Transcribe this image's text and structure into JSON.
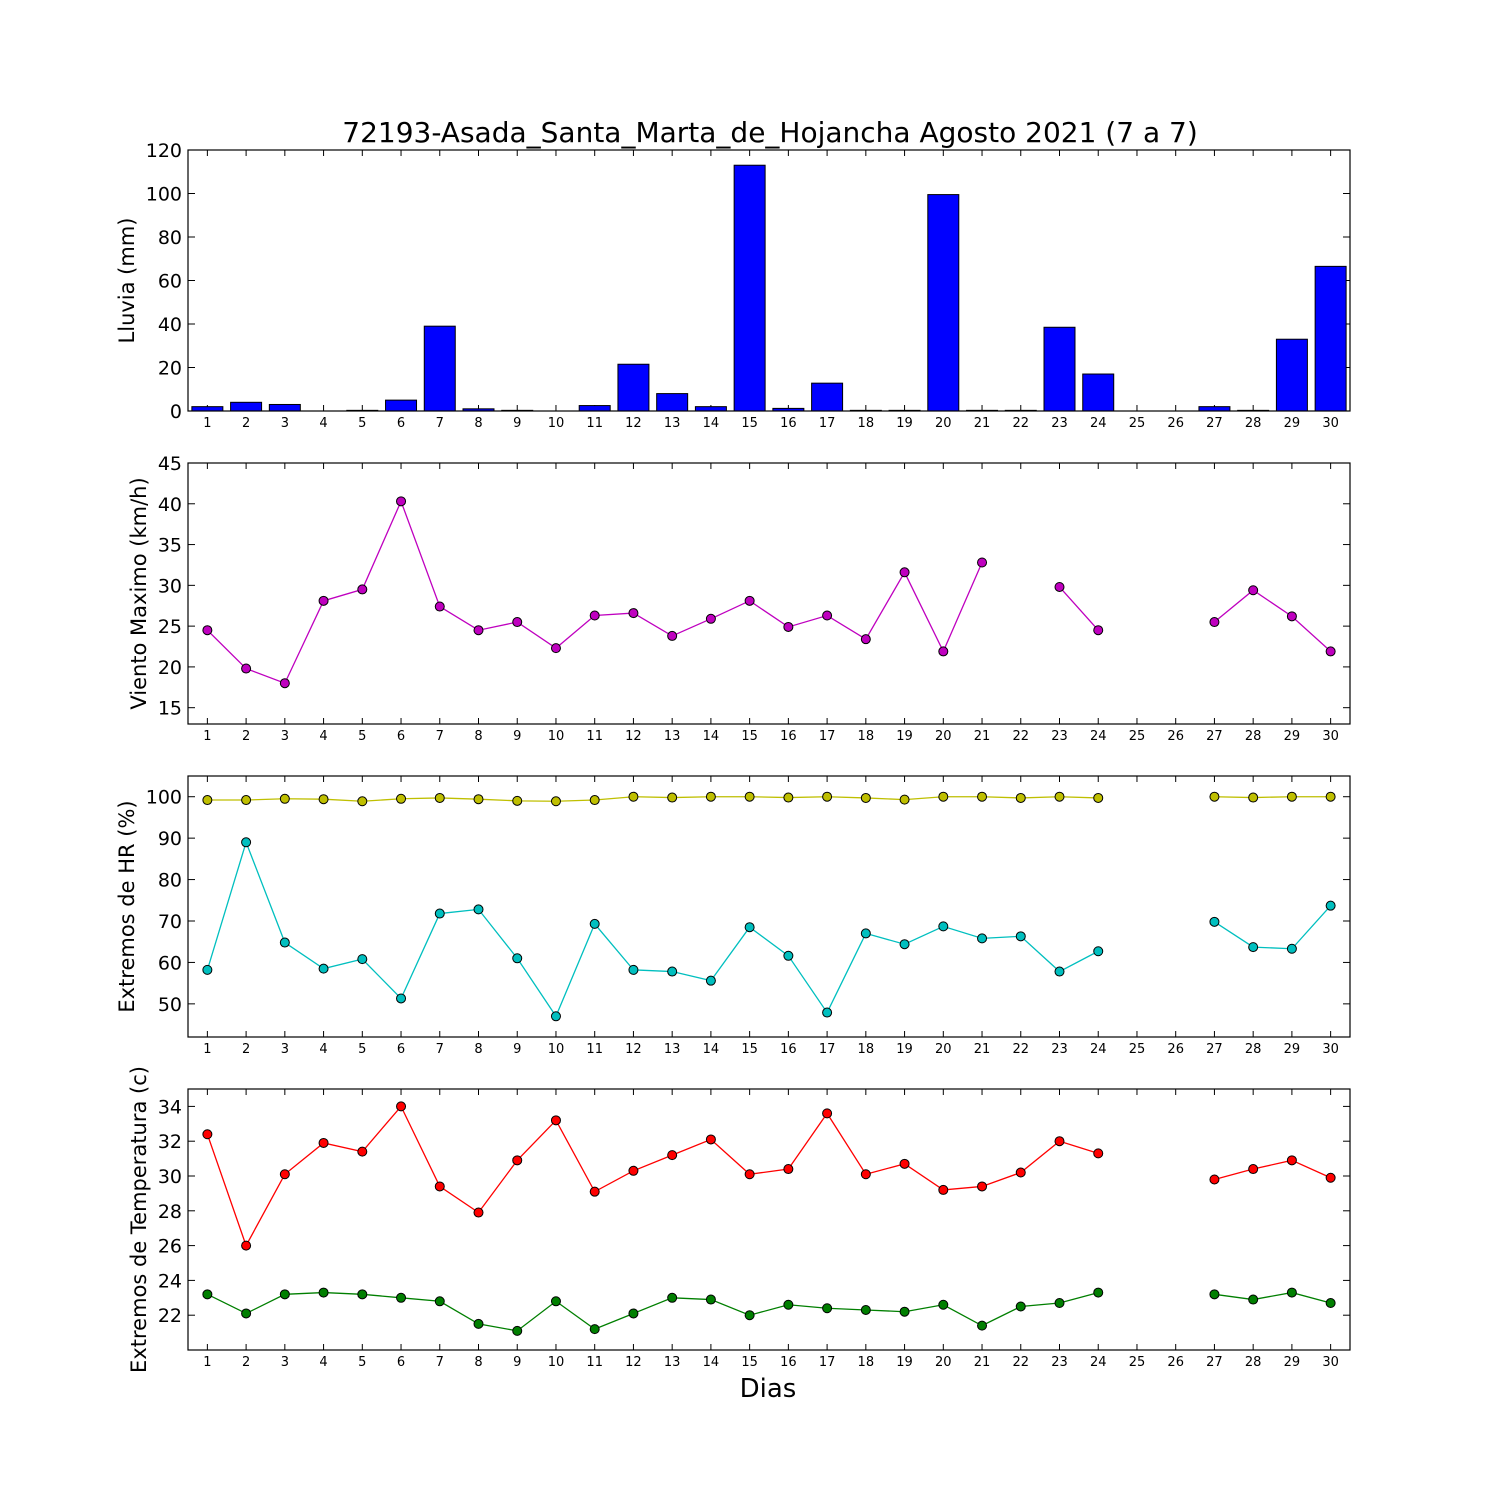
{
  "title": "72193-Asada_Santa_Marta_de_Hojancha Agosto 2021  (7 a 7)",
  "xlabel": "Dias",
  "days": [
    1,
    2,
    3,
    4,
    5,
    6,
    7,
    8,
    9,
    10,
    11,
    12,
    13,
    14,
    15,
    16,
    17,
    18,
    19,
    20,
    21,
    22,
    23,
    24,
    25,
    26,
    27,
    28,
    29,
    30
  ],
  "chart_data": [
    {
      "type": "bar",
      "ylabel": "Lluvia (mm)",
      "ylim": [
        0,
        120
      ],
      "yticks": [
        0,
        20,
        40,
        60,
        80,
        100,
        120
      ],
      "categories": [
        1,
        2,
        3,
        4,
        5,
        6,
        7,
        8,
        9,
        10,
        11,
        12,
        13,
        14,
        15,
        16,
        17,
        18,
        19,
        20,
        21,
        22,
        23,
        24,
        25,
        26,
        27,
        28,
        29,
        30
      ],
      "values": [
        2,
        4,
        3,
        0,
        0.3,
        5,
        39,
        1,
        0.3,
        0,
        2.5,
        21.5,
        8,
        2,
        113,
        1.2,
        12.8,
        0.3,
        0.3,
        99.5,
        0.3,
        0.3,
        38.5,
        17,
        0,
        0,
        2,
        0.3,
        33,
        66.5
      ],
      "color": "#0000ff"
    },
    {
      "type": "line",
      "ylabel": "Viento Maximo (km/h)",
      "ylim": [
        13,
        45
      ],
      "yticks": [
        15,
        20,
        25,
        30,
        35,
        40,
        45
      ],
      "x": [
        1,
        2,
        3,
        4,
        5,
        6,
        7,
        8,
        9,
        10,
        11,
        12,
        13,
        14,
        15,
        16,
        17,
        18,
        19,
        20,
        21,
        22,
        23,
        24,
        25,
        26,
        27,
        28,
        29,
        30
      ],
      "series": [
        {
          "values": [
            24.5,
            19.8,
            18,
            28.1,
            29.5,
            40.3,
            27.4,
            24.5,
            25.5,
            22.3,
            26.3,
            26.6,
            23.8,
            25.9,
            28.1,
            24.9,
            26.3,
            23.4,
            31.6,
            21.9,
            32.8,
            null,
            29.8,
            24.5,
            null,
            null,
            25.5,
            29.4,
            26.2,
            21.9
          ],
          "color": "#bf00bf"
        }
      ]
    },
    {
      "type": "line",
      "ylabel": "Extremos de HR (%)",
      "ylim": [
        42,
        105
      ],
      "yticks": [
        50,
        60,
        70,
        80,
        90,
        100
      ],
      "x": [
        1,
        2,
        3,
        4,
        5,
        6,
        7,
        8,
        9,
        10,
        11,
        12,
        13,
        14,
        15,
        16,
        17,
        18,
        19,
        20,
        21,
        22,
        23,
        24,
        25,
        26,
        27,
        28,
        29,
        30
      ],
      "series": [
        {
          "values": [
            99.2,
            99.2,
            99.5,
            99.4,
            98.9,
            99.5,
            99.7,
            99.4,
            99,
            98.9,
            99.2,
            100,
            99.8,
            100,
            100,
            99.8,
            100,
            99.7,
            99.3,
            100,
            100,
            99.7,
            100,
            99.7,
            null,
            null,
            100,
            99.8,
            100,
            100
          ],
          "color": "#bfbf00"
        },
        {
          "values": [
            58.2,
            89,
            64.8,
            58.5,
            60.8,
            51.3,
            71.8,
            72.8,
            61,
            47,
            69.3,
            58.2,
            57.8,
            55.6,
            68.5,
            61.6,
            47.9,
            67,
            64.4,
            68.7,
            65.8,
            66.3,
            57.8,
            62.7,
            null,
            null,
            69.8,
            63.7,
            63.3,
            73.7
          ],
          "color": "#00bfbf"
        }
      ]
    },
    {
      "type": "line",
      "ylabel": "Extremos de Temperatura (c)",
      "ylim": [
        20,
        35
      ],
      "yticks": [
        22,
        24,
        26,
        28,
        30,
        32,
        34
      ],
      "x": [
        1,
        2,
        3,
        4,
        5,
        6,
        7,
        8,
        9,
        10,
        11,
        12,
        13,
        14,
        15,
        16,
        17,
        18,
        19,
        20,
        21,
        22,
        23,
        24,
        25,
        26,
        27,
        28,
        29,
        30
      ],
      "series": [
        {
          "values": [
            32.4,
            26,
            30.1,
            31.9,
            31.4,
            34,
            29.4,
            27.9,
            30.9,
            33.2,
            29.1,
            30.3,
            31.2,
            32.1,
            30.1,
            30.4,
            33.6,
            30.1,
            30.7,
            29.2,
            29.4,
            30.2,
            32,
            31.3,
            null,
            null,
            29.8,
            30.4,
            30.9,
            29.9
          ],
          "color": "#ff0000"
        },
        {
          "values": [
            23.2,
            22.1,
            23.2,
            23.3,
            23.2,
            23,
            22.8,
            21.5,
            21.1,
            22.8,
            21.2,
            22.1,
            23,
            22.9,
            22,
            22.6,
            22.4,
            22.3,
            22.2,
            22.6,
            21.4,
            22.5,
            22.7,
            23.3,
            null,
            null,
            23.2,
            22.9,
            23.3,
            22.7
          ],
          "color": "#007f00"
        }
      ]
    }
  ]
}
